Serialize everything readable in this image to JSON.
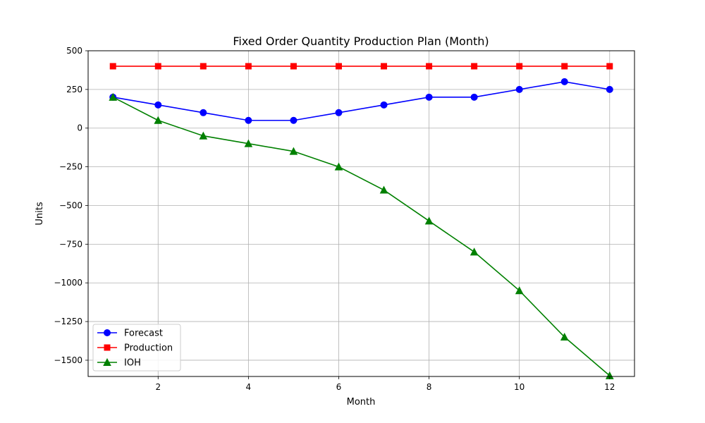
{
  "chart_data": {
    "type": "line",
    "title": "Fixed Order Quantity Production Plan (Month)",
    "xlabel": "Month",
    "ylabel": "Units",
    "x": [
      1,
      2,
      3,
      4,
      5,
      6,
      7,
      8,
      9,
      10,
      11,
      12
    ],
    "xlim": [
      0.45,
      12.55
    ],
    "ylim": [
      -1605,
      500
    ],
    "xticks": [
      2,
      4,
      6,
      8,
      10,
      12
    ],
    "xtick_labels": [
      "2",
      "4",
      "6",
      "8",
      "10",
      "12"
    ],
    "yticks": [
      500,
      250,
      0,
      -250,
      -500,
      -750,
      -1000,
      -1250,
      -1500
    ],
    "ytick_labels": [
      "500",
      "250",
      "0",
      "−250",
      "−500",
      "−750",
      "−1000",
      "−1250",
      "−1500"
    ],
    "grid": true,
    "legend_position": "lower-left",
    "series": [
      {
        "name": "Forecast",
        "color": "#0000ff",
        "marker": "circle",
        "values": [
          200,
          150,
          100,
          50,
          50,
          100,
          150,
          200,
          200,
          250,
          300,
          250
        ]
      },
      {
        "name": "Production",
        "color": "#ff0000",
        "marker": "square",
        "values": [
          400,
          400,
          400,
          400,
          400,
          400,
          400,
          400,
          400,
          400,
          400,
          400
        ]
      },
      {
        "name": "IOH",
        "color": "#008000",
        "marker": "triangle",
        "values": [
          200,
          50,
          -50,
          -100,
          -150,
          -250,
          -400,
          -600,
          -800,
          -1050,
          -1350,
          -1600
        ]
      }
    ]
  }
}
